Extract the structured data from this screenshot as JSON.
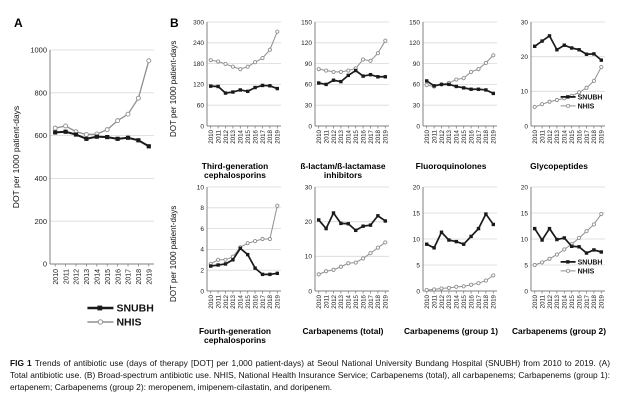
{
  "panels": {
    "a_label": "A",
    "b_label": "B"
  },
  "y_axis_label": "DOT per 1000 patient-days",
  "years": [
    "2010",
    "2011",
    "2012",
    "2013",
    "2014",
    "2015",
    "2016",
    "2017",
    "2018",
    "2019"
  ],
  "legend": {
    "snubh": "SNUBH",
    "nhis": "NHIS"
  },
  "colors": {
    "snubh": "#1a1a1a",
    "nhis": "#8f8f8f",
    "gridline": "#d9d9d9",
    "axis": "#808080",
    "tick_text": "#222222"
  },
  "caption": {
    "label": "FIG 1",
    "text": "Trends of antibiotic use (days of therapy [DOT] per 1,000 patient-days) at Seoul National University Bundang Hospital (SNUBH) from 2010 to 2019. (A) Total antibiotic use. (B) Broad-spectrum antibiotic use. NHIS, National Health Insurance Service; Carbapenems (total), all carbapenems; Carbapenems (group 1): ertapenem; Carbapenems (group 2): meropenem, imipenem-cilastatin, and doripenem."
  },
  "chart_data": [
    {
      "type": "line",
      "title": "",
      "panel": "A",
      "ylabel": "DOT per 1000 patient-days",
      "ylim": [
        0,
        1000
      ],
      "yticks": [
        0,
        200,
        400,
        600,
        800,
        1000
      ],
      "legend": "bottom",
      "series": [
        {
          "name": "SNUBH",
          "values": [
            615,
            618,
            605,
            585,
            595,
            593,
            585,
            590,
            578,
            550
          ]
        },
        {
          "name": "NHIS",
          "values": [
            635,
            645,
            618,
            605,
            607,
            628,
            670,
            700,
            775,
            950
          ]
        }
      ]
    },
    {
      "type": "line",
      "title": "Third-generation cephalosporins",
      "panel": "B",
      "ylim": [
        0,
        300
      ],
      "yticks": [
        0,
        60,
        120,
        180,
        240,
        300
      ],
      "legend": "none",
      "series": [
        {
          "name": "SNUBH",
          "values": [
            115,
            114,
            95,
            98,
            104,
            100,
            111,
            117,
            116,
            108
          ]
        },
        {
          "name": "NHIS",
          "values": [
            190,
            186,
            179,
            171,
            164,
            171,
            184,
            196,
            220,
            272
          ]
        }
      ]
    },
    {
      "type": "line",
      "title": "ß-lactam/ß-lactamase inhibitors",
      "panel": "B",
      "ylim": [
        0,
        150
      ],
      "yticks": [
        0,
        30,
        60,
        90,
        120,
        150
      ],
      "legend": "none",
      "series": [
        {
          "name": "SNUBH",
          "values": [
            62,
            60,
            66,
            64,
            73,
            80,
            72,
            74,
            71,
            71
          ]
        },
        {
          "name": "NHIS",
          "values": [
            82,
            80,
            78,
            78,
            80,
            83,
            96,
            94,
            105,
            123
          ]
        }
      ]
    },
    {
      "type": "line",
      "title": "Fluoroquinolones",
      "panel": "B",
      "ylim": [
        0,
        150
      ],
      "yticks": [
        0,
        30,
        60,
        90,
        120,
        150
      ],
      "legend": "none",
      "series": [
        {
          "name": "SNUBH",
          "values": [
            65,
            58,
            60,
            60,
            57,
            55,
            53,
            53,
            52,
            47
          ]
        },
        {
          "name": "NHIS",
          "values": [
            59,
            57,
            60,
            62,
            67,
            69,
            78,
            82,
            91,
            102
          ]
        }
      ]
    },
    {
      "type": "line",
      "title": "Glycopeptides",
      "panel": "B",
      "ylim": [
        0,
        30
      ],
      "yticks": [
        0,
        10,
        20,
        30
      ],
      "legend": "inside",
      "series": [
        {
          "name": "SNUBH",
          "values": [
            23,
            24.5,
            26,
            22,
            23.3,
            22.5,
            22,
            20.7,
            20.8,
            19
          ]
        },
        {
          "name": "NHIS",
          "values": [
            5.5,
            6.3,
            7,
            7.5,
            8,
            8.7,
            9.7,
            11,
            13,
            17
          ]
        }
      ]
    },
    {
      "type": "line",
      "title": "Fourth-generation cephalosporins",
      "panel": "B",
      "ylim": [
        0,
        10
      ],
      "yticks": [
        0,
        2,
        4,
        6,
        8,
        10
      ],
      "legend": "none",
      "series": [
        {
          "name": "SNUBH",
          "values": [
            2.4,
            2.5,
            2.6,
            3.0,
            4.1,
            3.5,
            2.2,
            1.6,
            1.6,
            1.7
          ]
        },
        {
          "name": "NHIS",
          "values": [
            2.6,
            3.0,
            3.0,
            3.3,
            4.2,
            4.6,
            4.8,
            5.0,
            5.0,
            8.2
          ]
        }
      ]
    },
    {
      "type": "line",
      "title": "Carbapenems (total)",
      "panel": "B",
      "ylim": [
        0,
        30
      ],
      "yticks": [
        0,
        10,
        20,
        30
      ],
      "legend": "none",
      "series": [
        {
          "name": "SNUBH",
          "values": [
            20.5,
            18,
            22.5,
            19.5,
            19.4,
            17.5,
            18.7,
            19,
            21.7,
            20.2
          ]
        },
        {
          "name": "NHIS",
          "values": [
            4.8,
            5.7,
            6.1,
            7,
            8,
            8.2,
            9.4,
            10.9,
            12.5,
            14
          ]
        }
      ]
    },
    {
      "type": "line",
      "title": "Carbapenems (group 1)",
      "panel": "B",
      "ylim": [
        0,
        20
      ],
      "yticks": [
        0,
        5,
        10,
        15,
        20
      ],
      "legend": "none",
      "series": [
        {
          "name": "SNUBH",
          "values": [
            9,
            8.3,
            11.3,
            9.8,
            9.5,
            9,
            10.5,
            12,
            14.8,
            12.8
          ]
        },
        {
          "name": "NHIS",
          "values": [
            0.2,
            0.3,
            0.5,
            0.6,
            0.8,
            0.9,
            1.2,
            1.5,
            2.0,
            3.0
          ]
        }
      ]
    },
    {
      "type": "line",
      "title": "Carbapenems (group 2)",
      "panel": "B",
      "ylim": [
        0,
        20
      ],
      "yticks": [
        0,
        5,
        10,
        15,
        20
      ],
      "legend": "inside",
      "series": [
        {
          "name": "SNUBH",
          "values": [
            12,
            9.8,
            12,
            9.9,
            10.2,
            8.6,
            8.5,
            7.3,
            7.9,
            7.5
          ]
        },
        {
          "name": "NHIS",
          "values": [
            5,
            5.5,
            6.2,
            7,
            8,
            9,
            10.2,
            11.5,
            12.8,
            14.8
          ]
        }
      ]
    }
  ]
}
